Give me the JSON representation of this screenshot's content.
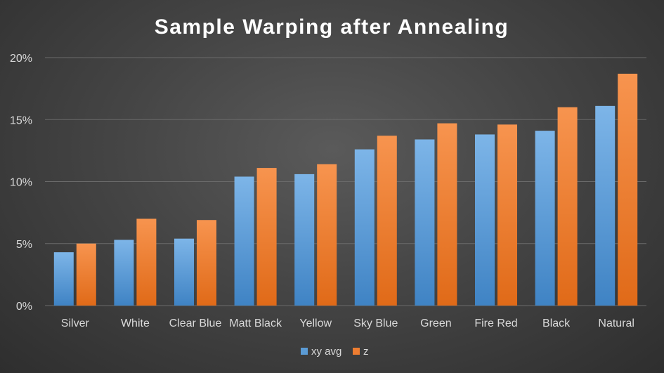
{
  "chart_data": {
    "type": "bar",
    "title": "Sample Warping after Annealing",
    "xlabel": "",
    "ylabel": "",
    "categories": [
      "Silver",
      "White",
      "Clear Blue",
      "Matt Black",
      "Yellow",
      "Sky Blue",
      "Green",
      "Fire Red",
      "Black",
      "Natural"
    ],
    "series": [
      {
        "name": "xy avg",
        "color": "#5b9bd5",
        "values": [
          4.3,
          5.3,
          5.4,
          10.4,
          10.6,
          12.6,
          13.4,
          13.8,
          14.1,
          16.1
        ]
      },
      {
        "name": "z",
        "color": "#ed7d31",
        "values": [
          5.0,
          7.0,
          6.9,
          11.1,
          11.4,
          13.7,
          14.7,
          14.6,
          16.0,
          18.7
        ]
      }
    ],
    "ylim": [
      0,
      20
    ],
    "yticks": [
      0,
      5,
      10,
      15,
      20
    ],
    "ytick_suffix": "%",
    "grid": true,
    "legend": "bottom"
  }
}
